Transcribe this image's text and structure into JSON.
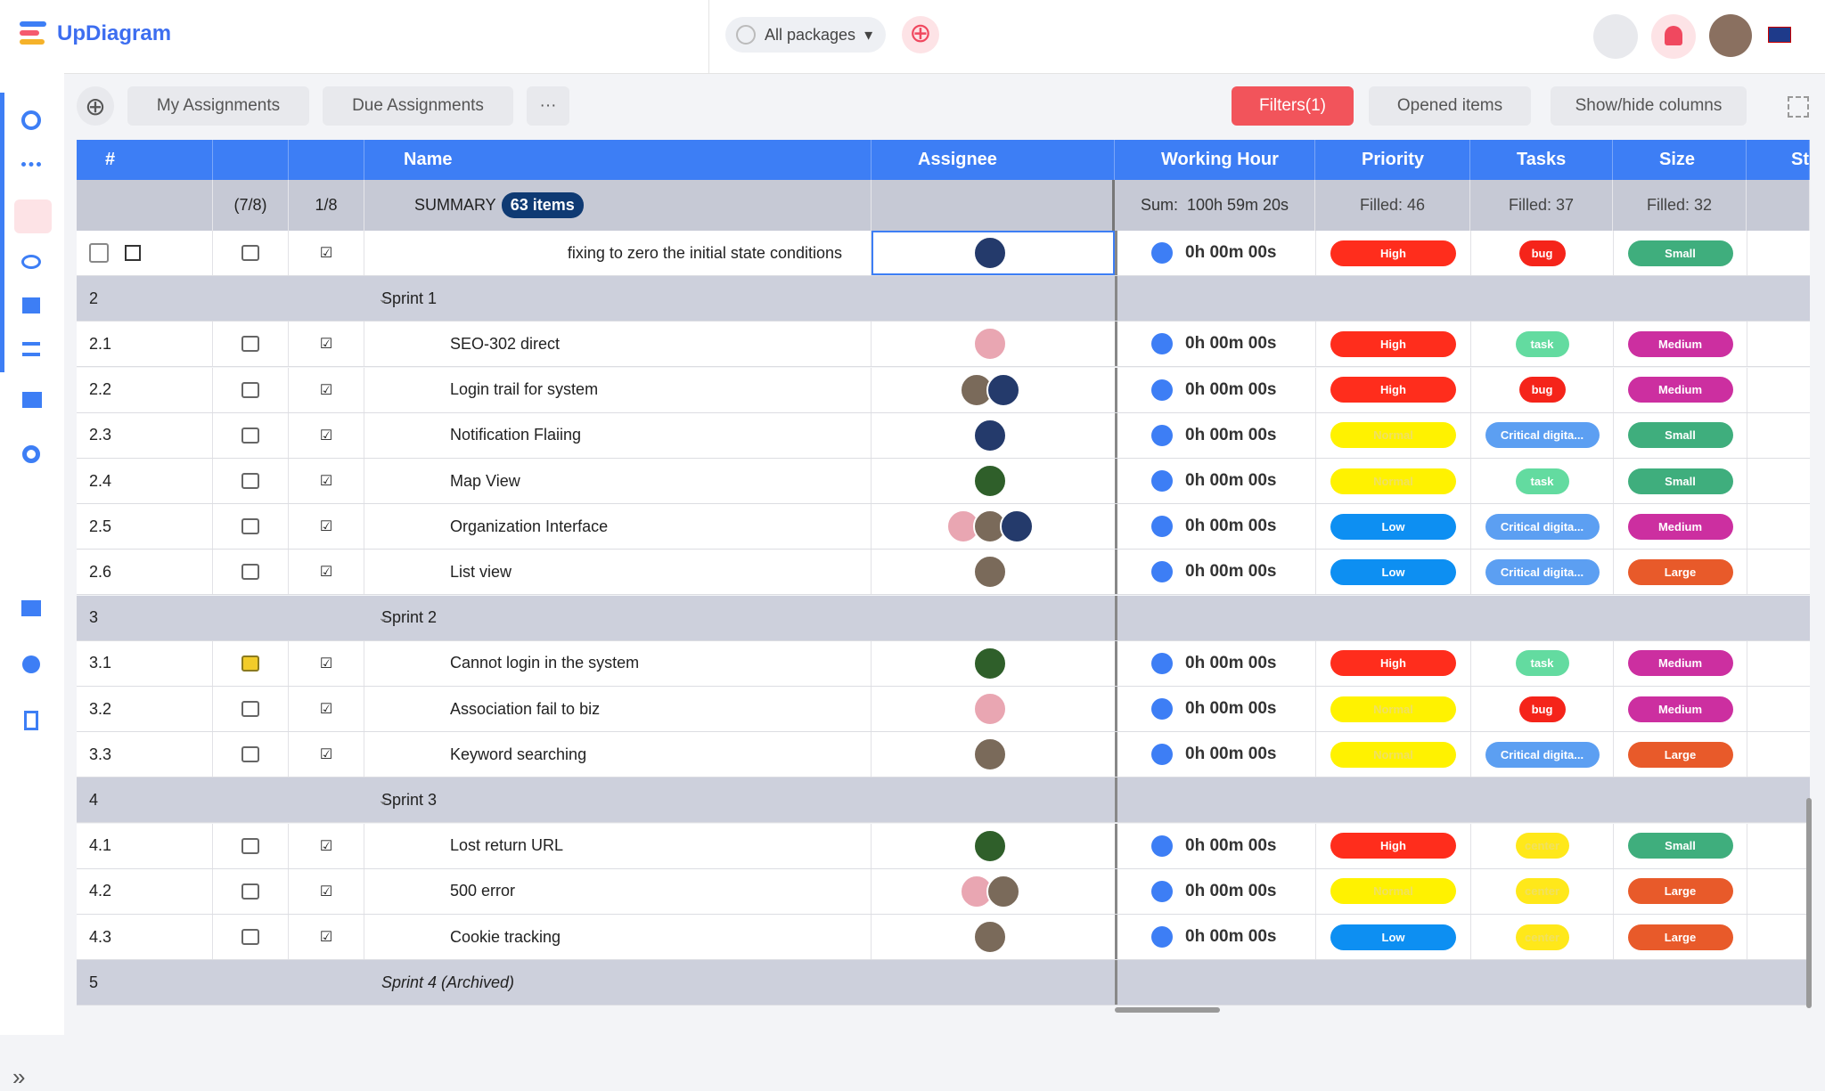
{
  "header": {
    "logo": "UpDiagram",
    "package": "All packages"
  },
  "toolbar": {
    "my": "My Assignments",
    "due": "Due Assignments",
    "filters": "Filters(1)",
    "opened": "Opened items",
    "columns": "Show/hide columns"
  },
  "table": {
    "columns": {
      "id": "#",
      "name": "Name",
      "assignee": "Assignee",
      "hour": "Working Hour",
      "priority": "Priority",
      "tasks": "Tasks",
      "size": "Size",
      "status": "St"
    },
    "summary": {
      "comments": "(7/8)",
      "checks": "1/8",
      "label": "SUMMARY",
      "count": "63 items",
      "sum_label": "Sum:",
      "sum": "100h 59m 20s",
      "priority": "Filled: 46",
      "tasks": "Filled: 37",
      "size": "Filled: 32"
    },
    "badge_colors": {
      "High": "#ff2d1c",
      "Normal": "#fff200",
      "Low": "#0d8ff2",
      "bug": "#f5241a",
      "task": "#63dba0",
      "Critical digita...": "#5c9ff2",
      "center": "#ffe81a",
      "Small": "#3fae7d",
      "Medium": "#cc2fa0",
      "Large": "#e85a2a"
    },
    "rows": [
      {
        "name": "fixing to zero the initial  state conditions",
        "time": "0h 00m 00s",
        "priority": "High",
        "task": "bug",
        "size": "Small"
      },
      {
        "id": "2",
        "name": "Sprint 1",
        "group": true
      },
      {
        "id": "2.1",
        "name": "SEO-302 direct",
        "time": "0h 00m 00s",
        "priority": "High",
        "task": "task",
        "size": "Medium"
      },
      {
        "id": "2.2",
        "name": "Login trail for system",
        "time": "0h 00m 00s",
        "priority": "High",
        "task": "bug",
        "size": "Medium"
      },
      {
        "id": "2.3",
        "name": "Notification Flaiing",
        "time": "0h 00m 00s",
        "priority": "Normal",
        "task": "Critical digita...",
        "size": "Small"
      },
      {
        "id": "2.4",
        "name": "Map View",
        "time": "0h 00m 00s",
        "priority": "Normal",
        "task": "task",
        "size": "Small"
      },
      {
        "id": "2.5",
        "name": "Organization Interface",
        "time": "0h 00m 00s",
        "priority": "Low",
        "task": "Critical digita...",
        "size": "Medium"
      },
      {
        "id": "2.6",
        "name": "List view",
        "time": "0h 00m 00s",
        "priority": "Low",
        "task": "Critical digita...",
        "size": "Large"
      },
      {
        "id": "3",
        "name": "Sprint 2",
        "group": true
      },
      {
        "id": "3.1",
        "name": "Cannot login in the system",
        "time": "0h 00m 00s",
        "priority": "High",
        "task": "task",
        "size": "Medium",
        "note": true
      },
      {
        "id": "3.2",
        "name": "Association fail to biz",
        "time": "0h 00m 00s",
        "priority": "Normal",
        "task": "bug",
        "size": "Medium"
      },
      {
        "id": "3.3",
        "name": "Keyword searching",
        "time": "0h 00m 00s",
        "priority": "Normal",
        "task": "Critical digita...",
        "size": "Large"
      },
      {
        "id": "4",
        "name": "Sprint 3",
        "group": true
      },
      {
        "id": "4.1",
        "name": "Lost return URL",
        "time": "0h 00m 00s",
        "priority": "High",
        "task": "center",
        "size": "Small"
      },
      {
        "id": "4.2",
        "name": "500 error",
        "time": "0h 00m 00s",
        "priority": "Normal",
        "task": "center",
        "size": "Large"
      },
      {
        "id": "4.3",
        "name": "Cookie tracking",
        "time": "0h 00m 00s",
        "priority": "Low",
        "task": "center",
        "size": "Large"
      },
      {
        "id": "5",
        "name": "Sprint 4 (Archived)",
        "group": true,
        "archived": true
      }
    ]
  }
}
